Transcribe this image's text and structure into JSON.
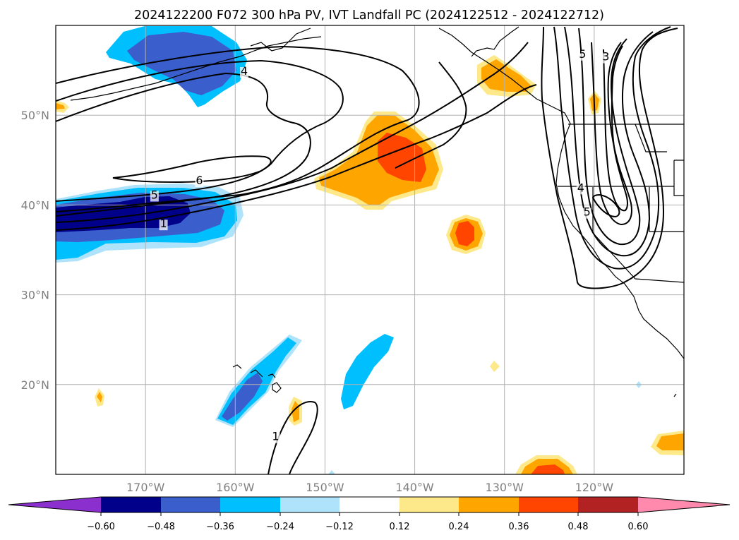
{
  "title": "2024122200 F072 300 hPa PV, IVT Landfall PC (2024122512 - 2024122712)",
  "map": {
    "lon_range": [
      -180,
      -110
    ],
    "lat_range": [
      10,
      60
    ],
    "lon_ticks": [
      {
        "lon": -170,
        "label": "170°W"
      },
      {
        "lon": -160,
        "label": "160°W"
      },
      {
        "lon": -150,
        "label": "150°W"
      },
      {
        "lon": -140,
        "label": "140°W"
      },
      {
        "lon": -130,
        "label": "130°W"
      },
      {
        "lon": -120,
        "label": "120°W"
      }
    ],
    "lat_ticks": [
      {
        "lat": 20,
        "label": "20°N"
      },
      {
        "lat": 30,
        "label": "30°N"
      },
      {
        "lat": 40,
        "label": "40°N"
      },
      {
        "lat": 50,
        "label": "50°N"
      }
    ],
    "contour_labels": [
      {
        "text": "4",
        "lon": -159.0,
        "lat": 54.5
      },
      {
        "text": "6",
        "lon": -164.0,
        "lat": 42.3
      },
      {
        "text": "5",
        "lon": -169.0,
        "lat": 40.7
      },
      {
        "text": "1",
        "lon": -168.0,
        "lat": 37.5
      },
      {
        "text": "1",
        "lon": -155.5,
        "lat": 13.8
      },
      {
        "text": "5",
        "lon": -121.3,
        "lat": 56.4
      },
      {
        "text": "3",
        "lon": -118.7,
        "lat": 56.1
      },
      {
        "text": "4",
        "lon": -121.5,
        "lat": 41.5
      },
      {
        "text": "5",
        "lon": -120.8,
        "lat": 38.8
      }
    ]
  },
  "colorbar": {
    "colors": [
      "#8c2fcf",
      "#00008b",
      "#3a5fcd",
      "#00bfff",
      "#aee3fb",
      "#ffffff",
      "#fde88a",
      "#ffa500",
      "#ff4500",
      "#b22222",
      "#ff8aae"
    ],
    "tick_values": [
      "−0.60",
      "−0.48",
      "−0.36",
      "−0.24",
      "−0.12",
      "0.12",
      "0.24",
      "0.36",
      "0.48",
      "0.60"
    ]
  }
}
